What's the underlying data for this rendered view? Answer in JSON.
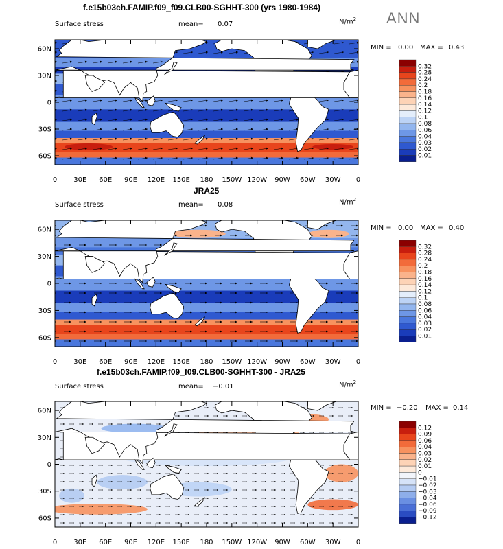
{
  "season": "ANN",
  "chart_data": [
    {
      "type": "heatmap",
      "title": "f.e15b03ch.FAMIP.f09_f09.CLB00-SGHHT-300 (yrs 1980-1984)",
      "variable": "Surface stress",
      "mean_label": "mean=",
      "mean": "0.07",
      "units": "N/m",
      "units_exp": "2",
      "min_label": "MIN =",
      "min": "0.00",
      "max_label": "MAX =",
      "max": "0.43",
      "yticks": [
        "60N",
        "30N",
        "0",
        "30S",
        "60S"
      ],
      "xticks": [
        "0",
        "30E",
        "60E",
        "90E",
        "120E",
        "150E",
        "180",
        "150W",
        "120W",
        "90W",
        "60W",
        "30W",
        "0"
      ],
      "ylim": [
        -70,
        70
      ],
      "xlim": [
        0,
        360
      ],
      "colorbar": {
        "levels": [
          "0.32",
          "0.28",
          "0.24",
          "0.2",
          "0.18",
          "0.16",
          "0.14",
          "0.12",
          "0.1",
          "0.08",
          "0.06",
          "0.04",
          "0.03",
          "0.02",
          "0.01"
        ],
        "colors": [
          "#8b0000",
          "#c81e0e",
          "#e8451c",
          "#f26b3a",
          "#f7925f",
          "#fab38b",
          "#fdd3b6",
          "#fde9d9",
          "#e4eefb",
          "#bcd3f5",
          "#93b6ee",
          "#6e97e6",
          "#4a77dd",
          "#2f59d0",
          "#1a3cba",
          "#0a1f8f"
        ]
      }
    },
    {
      "type": "heatmap",
      "title": "JRA25",
      "variable": "Surface stress",
      "mean_label": "mean=",
      "mean": "0.08",
      "units": "N/m",
      "units_exp": "2",
      "min_label": "MIN =",
      "min": "0.00",
      "max_label": "MAX =",
      "max": "0.40",
      "yticks": [
        "60N",
        "30N",
        "0",
        "30S",
        "60S"
      ],
      "xticks": [
        "0",
        "30E",
        "60E",
        "90E",
        "120E",
        "150E",
        "180",
        "150W",
        "120W",
        "90W",
        "60W",
        "30W",
        "0"
      ],
      "ylim": [
        -70,
        70
      ],
      "xlim": [
        0,
        360
      ],
      "colorbar": {
        "levels": [
          "0.32",
          "0.28",
          "0.24",
          "0.2",
          "0.18",
          "0.16",
          "0.14",
          "0.12",
          "0.1",
          "0.08",
          "0.06",
          "0.04",
          "0.03",
          "0.02",
          "0.01"
        ],
        "colors": [
          "#8b0000",
          "#c81e0e",
          "#e8451c",
          "#f26b3a",
          "#f7925f",
          "#fab38b",
          "#fdd3b6",
          "#fde9d9",
          "#e4eefb",
          "#bcd3f5",
          "#93b6ee",
          "#6e97e6",
          "#4a77dd",
          "#2f59d0",
          "#1a3cba",
          "#0a1f8f"
        ]
      }
    },
    {
      "type": "heatmap",
      "title": "f.e15b03ch.FAMIP.f09_f09.CLB00-SGHHT-300 - JRA25",
      "variable": "Surface stress",
      "mean_label": "mean=",
      "mean": "−0.01",
      "units": "N/m",
      "units_exp": "2",
      "min_label": "MIN =",
      "min": "−0.20",
      "max_label": "MAX =",
      "max": "0.14",
      "yticks": [
        "60N",
        "30N",
        "0",
        "30S",
        "60S"
      ],
      "xticks": [
        "0",
        "30E",
        "60E",
        "90E",
        "120E",
        "150E",
        "180",
        "150W",
        "120W",
        "90W",
        "60W",
        "30W",
        "0"
      ],
      "ylim": [
        -70,
        70
      ],
      "xlim": [
        0,
        360
      ],
      "colorbar": {
        "levels": [
          "0.12",
          "0.09",
          "0.06",
          "0.04",
          "0.03",
          "0.02",
          "0.01",
          "0",
          "−0.01",
          "−0.02",
          "−0.03",
          "−0.04",
          "−0.06",
          "−0.09",
          "−0.12"
        ],
        "colors": [
          "#8b0000",
          "#c81e0e",
          "#e8451c",
          "#f26b3a",
          "#f7925f",
          "#fab38b",
          "#fdd3b6",
          "#fde9d9",
          "#f2f5fb",
          "#d6e3f8",
          "#b4cbf2",
          "#8eaeea",
          "#6a8fe2",
          "#4a6fd6",
          "#2a4cc2",
          "#0a1f8f"
        ]
      }
    }
  ]
}
